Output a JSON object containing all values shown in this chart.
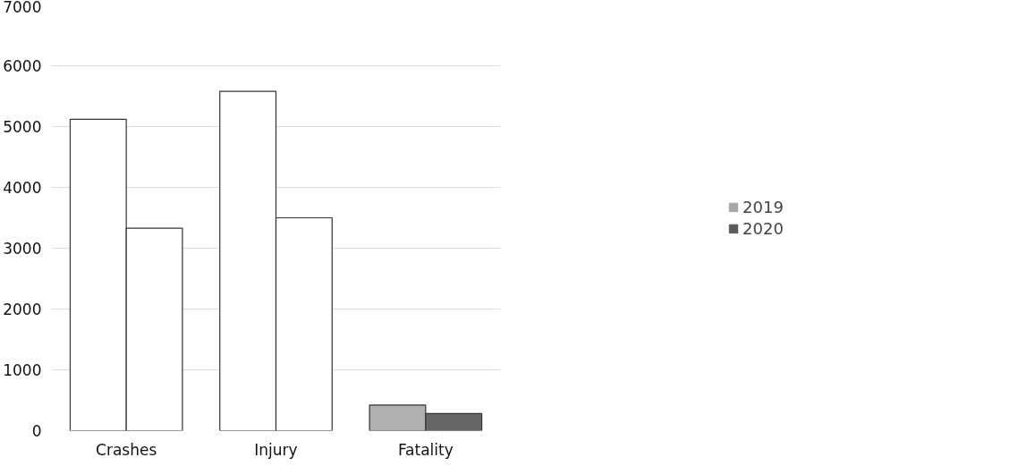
{
  "chart_data": {
    "type": "bar",
    "categories": [
      "Crashes",
      "Injury",
      "Fatality"
    ],
    "series": [
      {
        "name": "2019",
        "color": "#a8a8a8",
        "colors": [
          "#ffffff",
          "#ffffff",
          "#b0b0b0"
        ],
        "values": [
          5120,
          5580,
          420
        ]
      },
      {
        "name": "2020",
        "color": "#5a5a5a",
        "colors": [
          "#ffffff",
          "#ffffff",
          "#666666"
        ],
        "values": [
          3330,
          3500,
          280
        ]
      }
    ],
    "ylim": [
      0,
      7000
    ],
    "yticks": [
      0,
      1000,
      2000,
      3000,
      4000,
      5000,
      6000,
      7000
    ],
    "grid": "y",
    "legend": "right"
  }
}
